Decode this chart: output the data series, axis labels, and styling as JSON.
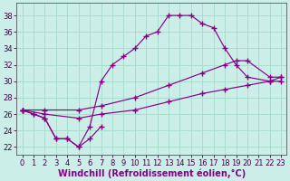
{
  "background_color": "#cceee8",
  "grid_color": "#aaddcc",
  "line_color": "#880088",
  "marker": "+",
  "xlabel": "Windchill (Refroidissement éolien,°C)",
  "xlabel_fontsize": 7,
  "tick_fontsize": 6,
  "xlim": [
    -0.5,
    23.5
  ],
  "ylim": [
    21.0,
    39.5
  ],
  "xticks": [
    0,
    1,
    2,
    3,
    4,
    5,
    6,
    7,
    8,
    9,
    10,
    11,
    12,
    13,
    14,
    15,
    16,
    17,
    18,
    19,
    20,
    21,
    22,
    23
  ],
  "yticks": [
    22,
    24,
    26,
    28,
    30,
    32,
    34,
    36,
    38
  ],
  "curve1_x": [
    0,
    1,
    2,
    3,
    4,
    5,
    6,
    7,
    8,
    9,
    10,
    11,
    12,
    13,
    14,
    15,
    16,
    17,
    18,
    19,
    20,
    22,
    23
  ],
  "curve1_y": [
    26.5,
    26.0,
    25.5,
    23.0,
    23.0,
    22.0,
    24.5,
    30.0,
    32.0,
    33.0,
    34.0,
    35.5,
    36.0,
    38.0,
    38.0,
    38.0,
    37.0,
    36.5,
    34.0,
    32.0,
    30.5,
    30.0,
    30.0
  ],
  "curve2_x": [
    0,
    1,
    2,
    3,
    4,
    5,
    6,
    7
  ],
  "curve2_y": [
    26.5,
    26.0,
    25.5,
    23.0,
    23.0,
    22.0,
    23.0,
    24.5
  ],
  "curve3_x": [
    0,
    2,
    5,
    7,
    10,
    13,
    16,
    18,
    19,
    20,
    22,
    23
  ],
  "curve3_y": [
    26.5,
    26.5,
    26.5,
    27.0,
    28.0,
    29.5,
    31.0,
    32.0,
    32.5,
    32.5,
    30.5,
    30.5
  ],
  "curve4_x": [
    0,
    2,
    5,
    7,
    10,
    13,
    16,
    18,
    20,
    22,
    23
  ],
  "curve4_y": [
    26.5,
    26.0,
    25.5,
    26.0,
    26.5,
    27.5,
    28.5,
    29.0,
    29.5,
    30.0,
    30.5
  ]
}
